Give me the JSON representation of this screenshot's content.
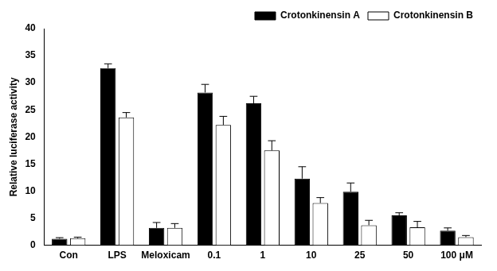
{
  "chart_data": {
    "type": "bar",
    "y_label": "Relative luciferase activity",
    "categories": [
      "Con",
      "LPS",
      "Meloxicam",
      "0.1",
      "1",
      "10",
      "25",
      "50",
      "100 μM"
    ],
    "series": [
      {
        "name": "Crotonkinensin A",
        "color": "#000000",
        "values": [
          1.2,
          32.7,
          3.2,
          28.2,
          26.2,
          12.3,
          9.9,
          5.5,
          2.7
        ],
        "errors": [
          0.2,
          0.8,
          1.0,
          1.5,
          1.3,
          2.2,
          1.6,
          0.5,
          0.5
        ]
      },
      {
        "name": "Crotonkinensin B",
        "color": "#ffffff",
        "values": [
          1.3,
          23.6,
          3.2,
          22.2,
          17.5,
          7.8,
          3.7,
          3.3,
          1.5
        ],
        "errors": [
          0.2,
          0.9,
          0.8,
          1.6,
          1.8,
          1.0,
          0.9,
          1.1,
          0.3
        ]
      }
    ],
    "ylim": [
      0,
      40
    ],
    "yticks": [
      0,
      5,
      10,
      15,
      20,
      25,
      30,
      35,
      40
    ],
    "grid": false,
    "legend": "upper right"
  }
}
